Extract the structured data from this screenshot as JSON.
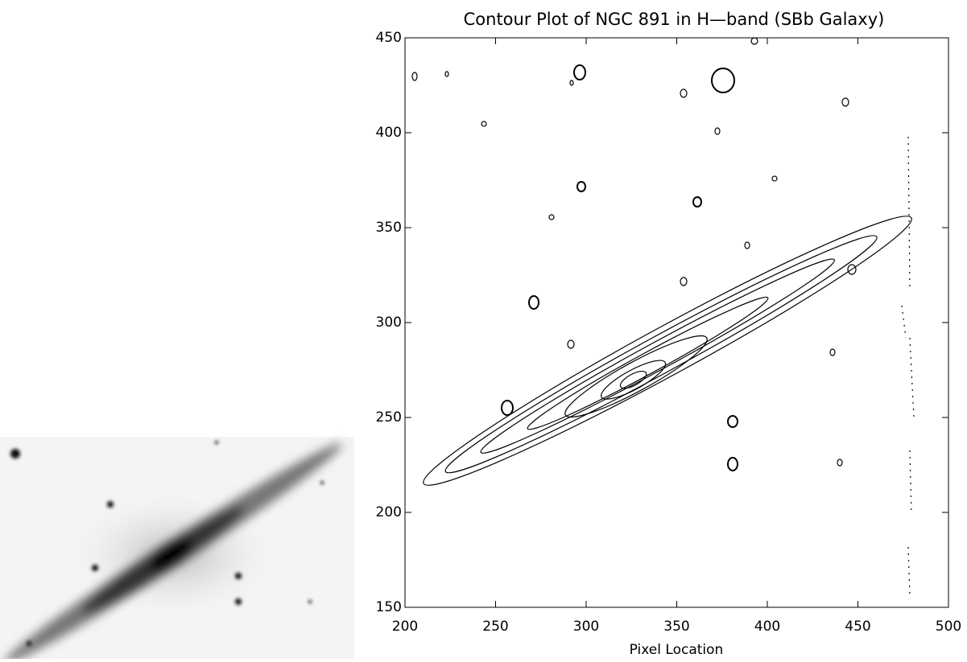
{
  "chart_data": {
    "type": "contour",
    "title": "Contour Plot of NGC 891 in H—band (SBb Galaxy)",
    "xlabel": "Pixel Location",
    "xlim": [
      200,
      500
    ],
    "ylim": [
      150,
      450
    ],
    "xticks": [
      200,
      250,
      300,
      350,
      400,
      450,
      500
    ],
    "yticks": [
      150,
      200,
      250,
      300,
      350,
      400,
      450
    ],
    "color": "#000000"
  }
}
